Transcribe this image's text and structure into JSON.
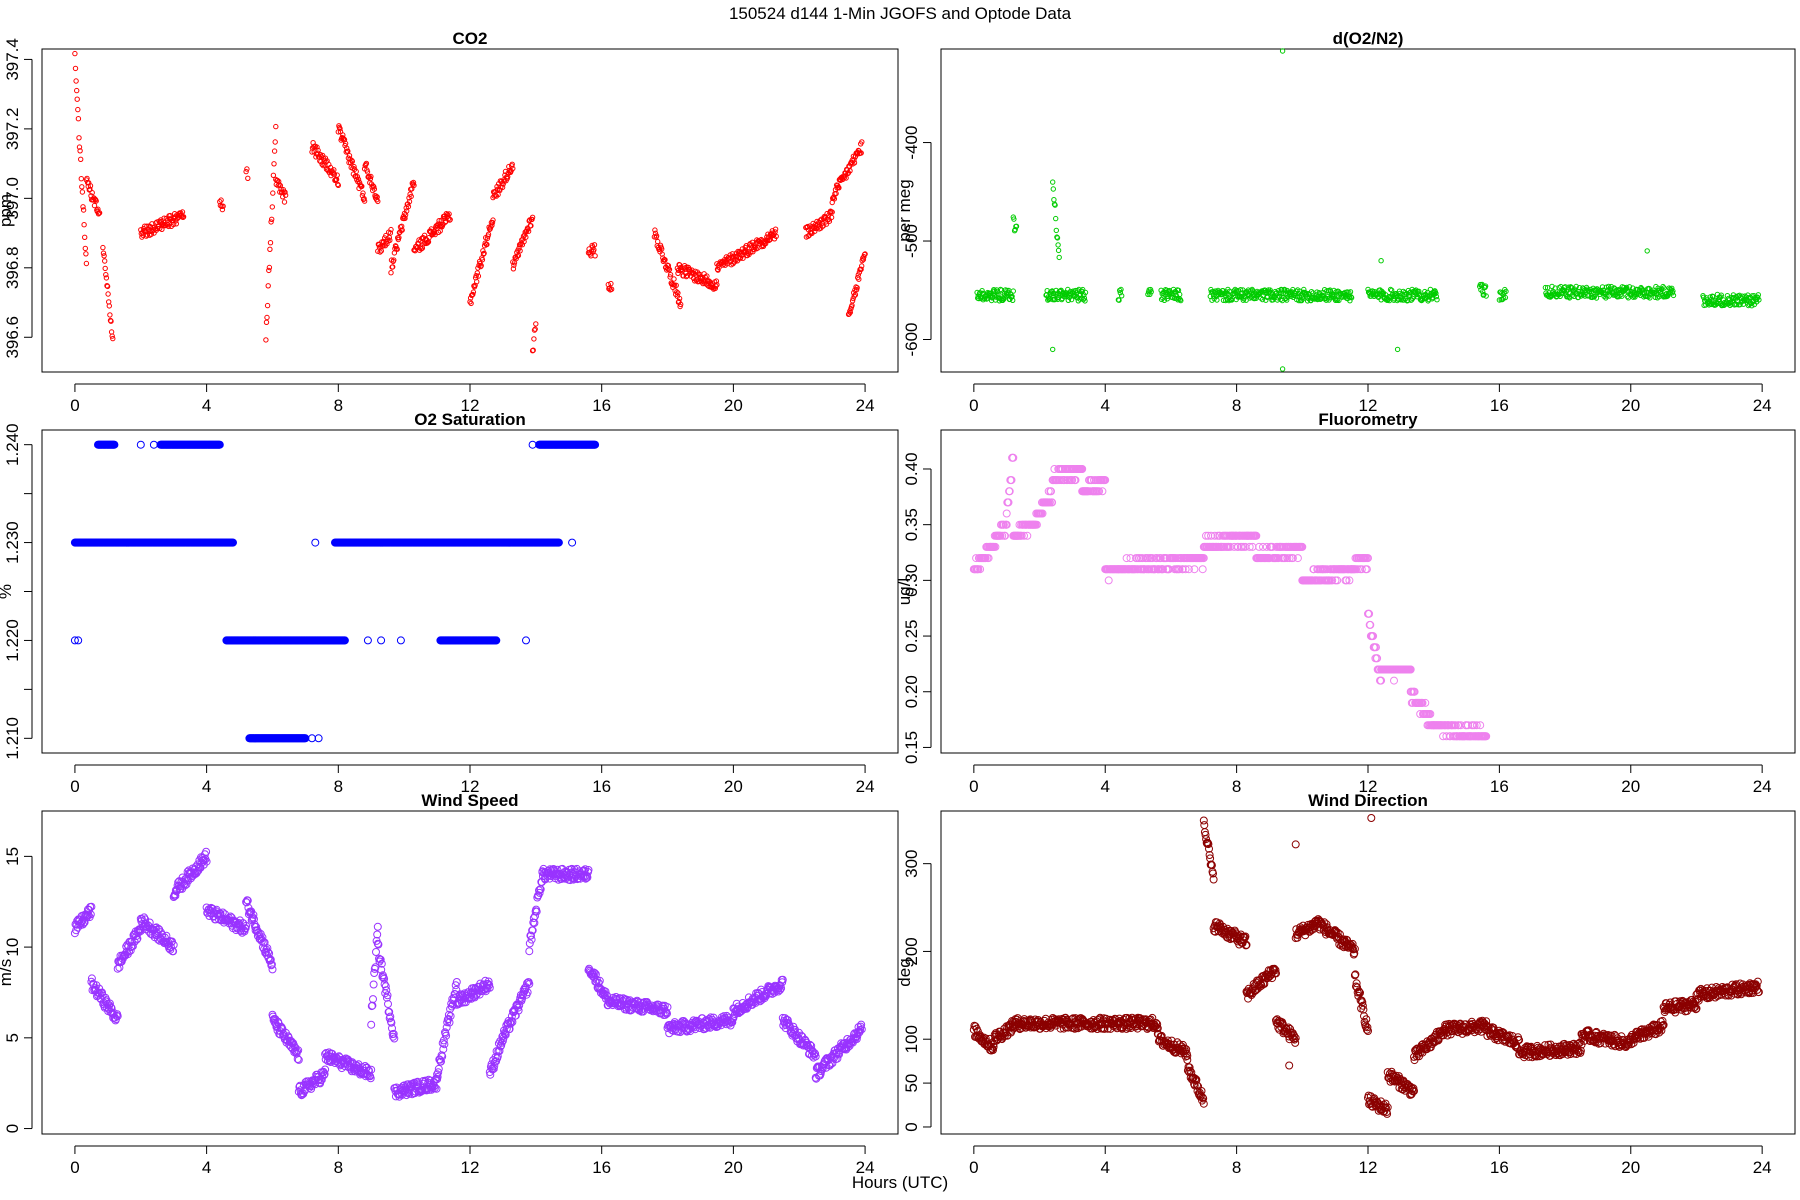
{
  "figure": {
    "title": "150524   d144   1-Min  JGOFS and Optode Data",
    "xlabel": "Hours (UTC)"
  },
  "chart_data": [
    {
      "type": "scatter",
      "title": "CO2",
      "xlabel": "",
      "ylabel": "ppm",
      "xlim": [
        -1,
        25
      ],
      "ylim": [
        396.5,
        397.43
      ],
      "xticks": [
        0,
        4,
        8,
        12,
        16,
        20,
        24
      ],
      "yticks": [
        396.6,
        396.8,
        397.0,
        397.2,
        397.4
      ],
      "ytick_labels": [
        "396.6",
        "396.8",
        "397.0",
        "397.2",
        "397.4"
      ],
      "color": "#ff0000",
      "marker_size": 2.2,
      "grid": false,
      "series": [
        {
          "segments": [
            [
              0.0,
              0.35,
              397.4,
              396.8
            ],
            [
              0.35,
              0.75,
              397.05,
              396.95
            ],
            [
              0.85,
              1.15,
              396.85,
              396.6
            ],
            [
              2.0,
              3.3,
              396.9,
              396.95
            ],
            [
              4.4,
              4.5,
              397.0,
              396.98
            ],
            [
              5.2,
              5.25,
              397.07,
              397.07
            ],
            [
              5.8,
              6.1,
              396.6,
              397.2
            ],
            [
              6.1,
              6.4,
              397.05,
              397.0
            ],
            [
              7.2,
              8.0,
              397.15,
              397.05
            ],
            [
              8.0,
              8.8,
              397.2,
              397.0
            ],
            [
              8.8,
              9.2,
              397.1,
              397.0
            ],
            [
              9.2,
              9.6,
              396.85,
              396.9
            ],
            [
              9.6,
              10.3,
              396.8,
              397.05
            ],
            [
              10.3,
              11.4,
              396.85,
              396.95
            ],
            [
              12.0,
              12.7,
              396.7,
              396.95
            ],
            [
              12.7,
              13.3,
              397.0,
              397.1
            ],
            [
              13.3,
              13.9,
              396.8,
              396.95
            ],
            [
              13.9,
              14.0,
              396.55,
              396.65
            ],
            [
              15.6,
              15.8,
              396.85,
              396.85
            ],
            [
              16.2,
              16.3,
              396.75,
              396.75
            ],
            [
              17.6,
              18.4,
              396.9,
              396.7
            ],
            [
              18.3,
              19.5,
              396.8,
              396.75
            ],
            [
              19.5,
              21.3,
              396.8,
              396.9
            ],
            [
              22.2,
              23.0,
              396.9,
              396.95
            ],
            [
              23.0,
              23.9,
              397.0,
              397.15
            ],
            [
              23.5,
              24.0,
              396.65,
              396.85
            ]
          ]
        }
      ]
    },
    {
      "type": "scatter",
      "title": "d(O2/N2)",
      "xlabel": "",
      "ylabel": "per meg",
      "xlim": [
        -1,
        25
      ],
      "ylim": [
        -633,
        -305
      ],
      "xticks": [
        0,
        4,
        8,
        12,
        16,
        20,
        24
      ],
      "yticks": [
        -600,
        -500,
        -400
      ],
      "ytick_labels": [
        "-600",
        "-500",
        "-400"
      ],
      "color": "#00cc00",
      "marker_size": 2.2,
      "grid": false,
      "series": [
        {
          "segments": [
            [
              0.1,
              1.2,
              -555,
              -555
            ],
            [
              1.2,
              1.3,
              -480,
              -490
            ],
            [
              2.2,
              3.4,
              -555,
              -555
            ],
            [
              2.4,
              2.6,
              -440,
              -520
            ],
            [
              4.4,
              4.5,
              -555,
              -555
            ],
            [
              5.3,
              5.4,
              -550,
              -550
            ],
            [
              5.7,
              6.3,
              -555,
              -555
            ],
            [
              7.2,
              11.5,
              -555,
              -555
            ],
            [
              12.0,
              14.1,
              -555,
              -555
            ],
            [
              15.4,
              15.6,
              -550,
              -550
            ],
            [
              16.0,
              16.2,
              -555,
              -555
            ],
            [
              17.4,
              21.3,
              -552,
              -552
            ],
            [
              22.2,
              23.9,
              -560,
              -560
            ]
          ]
        },
        {
          "name": "",
          "points": [
            [
              9.4,
              -307
            ],
            [
              9.4,
              -630
            ],
            [
              2.4,
              -610
            ],
            [
              12.9,
              -610
            ],
            [
              20.5,
              -510
            ],
            [
              12.4,
              -520
            ]
          ]
        }
      ]
    },
    {
      "type": "scatter",
      "title": "O2 Saturation",
      "xlabel": "",
      "ylabel": "%",
      "xlim": [
        -1,
        25
      ],
      "ylim": [
        1.2085,
        1.2415
      ],
      "xticks": [
        0,
        4,
        8,
        12,
        16,
        20,
        24
      ],
      "yticks": [
        1.21,
        1.22,
        1.23,
        1.24
      ],
      "ytick_labels": [
        "1.210",
        "1.220",
        "1.230",
        "1.240"
      ],
      "minor_yticks": [
        1.215,
        1.225,
        1.235
      ],
      "color": "#0000ff",
      "marker_size": 3.5,
      "grid": false,
      "series": [
        {
          "segments": [
            [
              0.0,
              4.8,
              1.23,
              1.23
            ],
            [
              7.9,
              14.7,
              1.23,
              1.23
            ],
            [
              0.7,
              1.2,
              1.24,
              1.24
            ],
            [
              2.6,
              4.4,
              1.24,
              1.24
            ],
            [
              14.1,
              15.8,
              1.24,
              1.24
            ],
            [
              4.6,
              8.2,
              1.22,
              1.22
            ],
            [
              11.1,
              12.8,
              1.22,
              1.22
            ],
            [
              5.3,
              7.0,
              1.21,
              1.21
            ]
          ]
        },
        {
          "name": "",
          "points": [
            [
              0.0,
              1.22
            ],
            [
              0.1,
              1.22
            ],
            [
              8.9,
              1.22
            ],
            [
              9.3,
              1.22
            ],
            [
              9.9,
              1.22
            ],
            [
              13.7,
              1.22
            ],
            [
              7.3,
              1.23
            ],
            [
              15.1,
              1.23
            ],
            [
              13.9,
              1.24
            ],
            [
              2.0,
              1.24
            ],
            [
              2.4,
              1.24
            ],
            [
              7.2,
              1.21
            ],
            [
              7.4,
              1.21
            ]
          ]
        }
      ]
    },
    {
      "type": "scatter",
      "title": "Fluorometry",
      "xlabel": "",
      "ylabel": "ug/l",
      "xlim": [
        -1,
        25
      ],
      "ylim": [
        0.145,
        0.435
      ],
      "xticks": [
        0,
        4,
        8,
        12,
        16,
        20,
        24
      ],
      "yticks": [
        0.15,
        0.2,
        0.25,
        0.3,
        0.35,
        0.4
      ],
      "ytick_labels": [
        "0.15",
        "0.20",
        "0.25",
        "0.30",
        "0.35",
        "0.40"
      ],
      "color": "#ee82ee",
      "marker_size": 3.5,
      "grid": false,
      "series": [
        {
          "segments": [
            [
              0.0,
              0.5,
              0.31,
              0.33
            ],
            [
              0.5,
              1.0,
              0.33,
              0.35
            ],
            [
              1.0,
              1.2,
              0.36,
              0.41
            ],
            [
              1.2,
              1.8,
              0.34,
              0.35
            ],
            [
              1.8,
              2.4,
              0.35,
              0.38
            ],
            [
              2.4,
              3.3,
              0.39,
              0.4
            ],
            [
              3.3,
              4.0,
              0.38,
              0.39
            ],
            [
              4.0,
              4.4,
              0.31,
              0.31
            ],
            [
              4.4,
              7.0,
              0.31,
              0.32
            ],
            [
              7.0,
              8.6,
              0.33,
              0.34
            ],
            [
              8.6,
              10.0,
              0.32,
              0.33
            ],
            [
              10.0,
              11.5,
              0.3,
              0.31
            ],
            [
              11.5,
              12.0,
              0.31,
              0.32
            ],
            [
              12.0,
              12.4,
              0.27,
              0.21
            ],
            [
              12.4,
              13.3,
              0.22,
              0.22
            ],
            [
              13.3,
              14.0,
              0.2,
              0.17
            ],
            [
              14.0,
              15.6,
              0.17,
              0.16
            ]
          ]
        }
      ]
    },
    {
      "type": "scatter",
      "title": "Wind Speed",
      "xlabel": "",
      "ylabel": "m/s",
      "xlim": [
        -1,
        25
      ],
      "ylim": [
        -0.3,
        17.5
      ],
      "xticks": [
        0,
        4,
        8,
        12,
        16,
        20,
        24
      ],
      "yticks": [
        0,
        5,
        10,
        15
      ],
      "ytick_labels": [
        "0",
        "5",
        "10",
        "15"
      ],
      "color": "#9933ff",
      "marker_size": 3.5,
      "grid": false,
      "series": [
        {
          "segments": [
            [
              0.0,
              0.5,
              11,
              12
            ],
            [
              0.5,
              1.3,
              8,
              6
            ],
            [
              1.3,
              2.0,
              9,
              11
            ],
            [
              2.0,
              3.0,
              11.5,
              10
            ],
            [
              3.0,
              4.0,
              13,
              15
            ],
            [
              4.0,
              5.2,
              12,
              11
            ],
            [
              5.2,
              6.0,
              12.5,
              9
            ],
            [
              6.0,
              6.8,
              6,
              4
            ],
            [
              6.8,
              7.6,
              2,
              3
            ],
            [
              7.6,
              9.0,
              4,
              3
            ],
            [
              9.0,
              9.2,
              6,
              11
            ],
            [
              9.2,
              9.7,
              10,
              5
            ],
            [
              9.7,
              11.0,
              2,
              2.5
            ],
            [
              11.0,
              11.6,
              3,
              8
            ],
            [
              11.6,
              12.6,
              7,
              8
            ],
            [
              12.6,
              13.0,
              3,
              5
            ],
            [
              13.0,
              13.8,
              5,
              8
            ],
            [
              13.8,
              14.2,
              10,
              14
            ],
            [
              14.2,
              15.6,
              14,
              14
            ],
            [
              15.6,
              16.2,
              9,
              7
            ],
            [
              16.2,
              18.0,
              7,
              6.5
            ],
            [
              18.0,
              20.0,
              5.5,
              6
            ],
            [
              20.0,
              21.5,
              6.5,
              8
            ],
            [
              21.5,
              22.5,
              6,
              4
            ],
            [
              22.5,
              23.9,
              3,
              5.5
            ]
          ]
        }
      ]
    },
    {
      "type": "scatter",
      "title": "Wind Direction",
      "xlabel": "",
      "ylabel": "deg",
      "xlim": [
        -1,
        25
      ],
      "ylim": [
        -8,
        360
      ],
      "xticks": [
        0,
        4,
        8,
        12,
        16,
        20,
        24
      ],
      "yticks": [
        0,
        50,
        100,
        200,
        300
      ],
      "ytick_labels": [
        "0",
        "50",
        "100",
        "200",
        "300"
      ],
      "color": "#8b0000",
      "marker_size": 3.5,
      "grid": false,
      "series": [
        {
          "segments": [
            [
              0.0,
              0.6,
              110,
              90
            ],
            [
              0.6,
              1.2,
              100,
              115
            ],
            [
              1.2,
              5.6,
              118,
              118
            ],
            [
              5.6,
              6.5,
              100,
              85
            ],
            [
              6.5,
              7.0,
              70,
              30
            ],
            [
              7.0,
              7.3,
              350,
              280
            ],
            [
              7.3,
              8.3,
              230,
              210
            ],
            [
              8.3,
              9.2,
              150,
              180
            ],
            [
              9.2,
              9.8,
              120,
              100
            ],
            [
              9.8,
              10.4,
              220,
              230
            ],
            [
              10.4,
              11.6,
              235,
              200
            ],
            [
              11.6,
              12.0,
              170,
              110
            ],
            [
              12.0,
              12.6,
              30,
              20
            ],
            [
              12.6,
              13.4,
              60,
              40
            ],
            [
              13.4,
              14.2,
              80,
              105
            ],
            [
              14.2,
              15.6,
              110,
              115
            ],
            [
              15.6,
              16.6,
              110,
              95
            ],
            [
              16.6,
              18.5,
              85,
              90
            ],
            [
              18.5,
              20.0,
              105,
              95
            ],
            [
              20.0,
              21.0,
              100,
              115
            ],
            [
              21.0,
              22.0,
              135,
              140
            ],
            [
              22.0,
              23.9,
              150,
              160
            ]
          ]
        },
        {
          "name": "",
          "points": [
            [
              12.1,
              352
            ],
            [
              9.8,
              322
            ],
            [
              9.6,
              70
            ]
          ]
        }
      ]
    }
  ]
}
